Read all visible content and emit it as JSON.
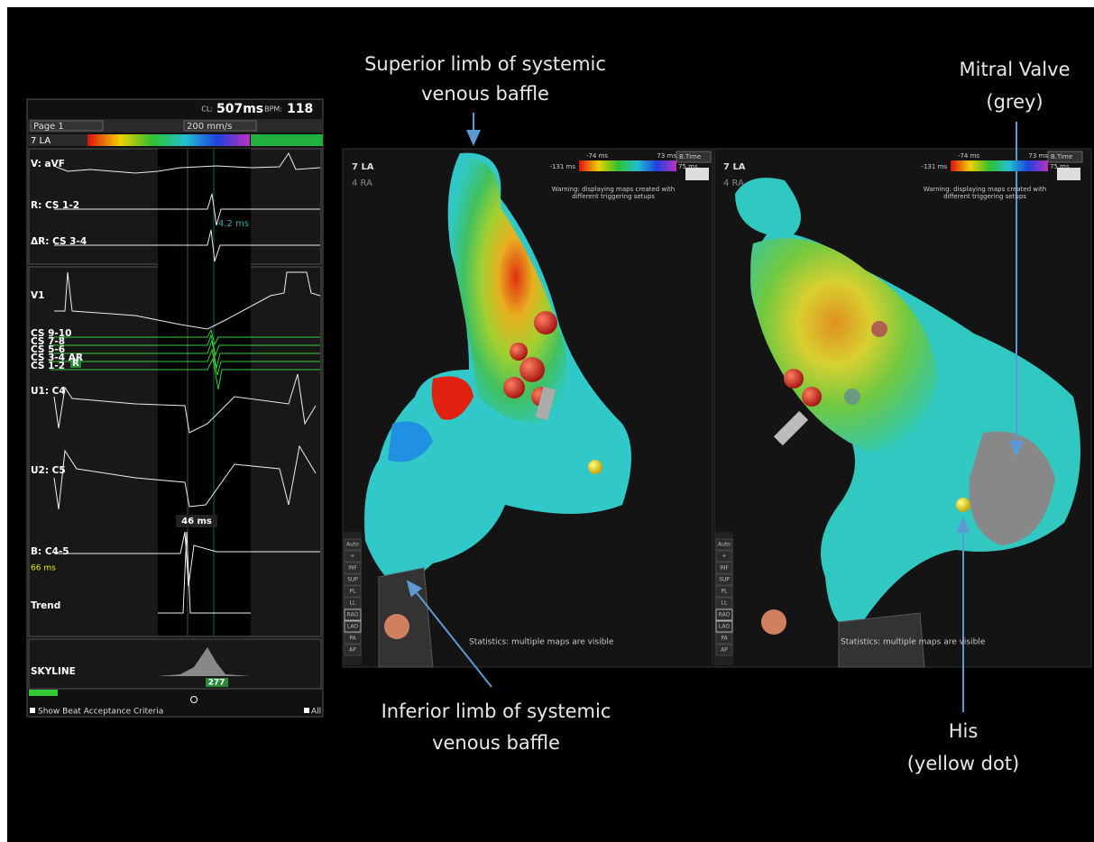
{
  "annotations": {
    "superior": [
      "Superior limb of systemic",
      "venous baffle"
    ],
    "mitral": [
      "Mitral Valve",
      "(grey)"
    ],
    "inferior": [
      "Inferior limb of systemic",
      "venous baffle"
    ],
    "his": [
      "His",
      "(yellow dot)"
    ]
  },
  "ecg_panel": {
    "cl_label": "CL:",
    "cl_value": "507ms",
    "bpm_label": "BPM:",
    "bpm_value": "118",
    "page": "Page 1",
    "speed": "200 mm/s",
    "map_select": "7 LA",
    "channels": [
      "V: aVF",
      "R: CS 1-2",
      "ΔR: CS 3-4",
      "V1",
      "CS 9-10",
      "CS 7-8",
      "CS 5-6",
      "CS 3-4 AR",
      "CS 1-2",
      "U1: C4",
      "U2: C5",
      "B: C4-5",
      "Trend",
      "SKYLINE"
    ],
    "cs_tag": "R",
    "delay_cs": "4.2 ms",
    "delay_b": "46 ms",
    "b_value": "66 ms",
    "skyline_value": "277",
    "footer_left": "Show Beat Acceptance Criteria",
    "footer_right": "All"
  },
  "map_panels": [
    {
      "map1": "7 LA",
      "map2": "4 RA",
      "scale_top_left": "-74 ms",
      "scale_bottom_left": "-131 ms",
      "scale_top_right": "73 ms",
      "scale_bottom_right": "75 ms",
      "mode": "B.Time",
      "warning": [
        "Warning: displaying maps created with",
        "different triggering setups"
      ],
      "statistics": "Statistics: multiple maps are visible",
      "views": [
        "Auto",
        "+",
        "INF",
        "SUP",
        "PL",
        "LL",
        "RAO",
        "LAO",
        "PA",
        "AP"
      ]
    },
    {
      "map1": "7 LA",
      "map2": "4 RA",
      "scale_top_left": "-74 ms",
      "scale_bottom_left": "-131 ms",
      "scale_top_right": "73 ms",
      "scale_bottom_right": "75 ms",
      "mode": "B.Time",
      "warning": [
        "Warning: displaying maps created with",
        "different triggering setups"
      ],
      "statistics": "Statistics: multiple maps are visible",
      "views": [
        "Auto",
        "+",
        "INF",
        "SUP",
        "PL",
        "LL",
        "RAO",
        "LAO",
        "PA",
        "AP"
      ]
    }
  ]
}
